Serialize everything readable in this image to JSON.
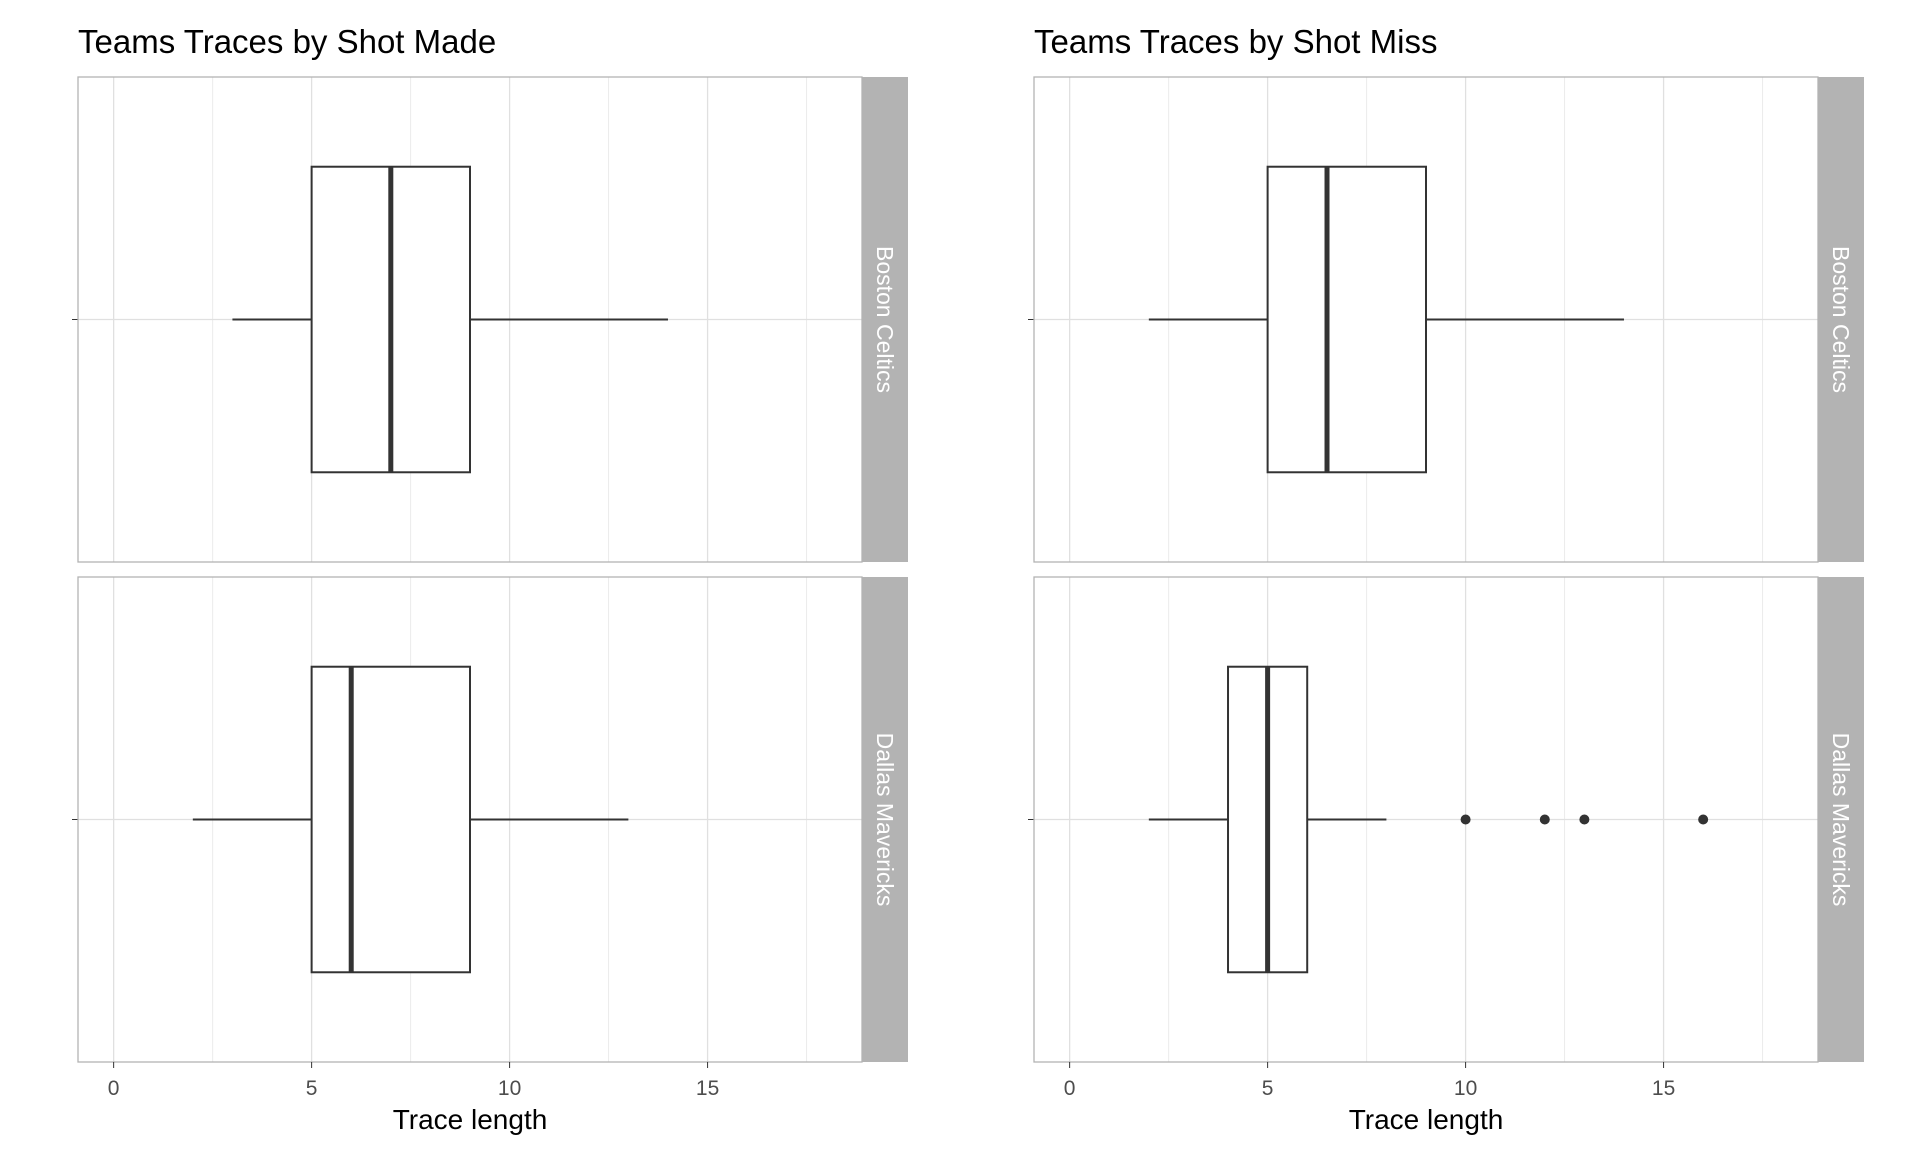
{
  "chart_data": [
    {
      "type": "boxplot",
      "title": "Teams Traces by Shot Made",
      "xlabel": "Trace length",
      "ylabel": "",
      "xlim": [
        -0.9,
        18.9
      ],
      "x_ticks": [
        0,
        5,
        10,
        15
      ],
      "x_tick_labels": [
        "0",
        "5",
        "10",
        "15"
      ],
      "grid": true,
      "facets": [
        {
          "strip_label": "Boston Celtics",
          "whisker_low": 3,
          "q1": 5,
          "median": 7,
          "q3": 9,
          "whisker_high": 14,
          "outliers": []
        },
        {
          "strip_label": "Dallas Mavericks",
          "whisker_low": 2,
          "q1": 5,
          "median": 6,
          "q3": 9,
          "whisker_high": 13,
          "outliers": []
        }
      ]
    },
    {
      "type": "boxplot",
      "title": "Teams Traces by Shot Miss",
      "xlabel": "Trace length",
      "ylabel": "",
      "xlim": [
        -0.9,
        18.9
      ],
      "x_ticks": [
        0,
        5,
        10,
        15
      ],
      "x_tick_labels": [
        "0",
        "5",
        "10",
        "15"
      ],
      "grid": true,
      "facets": [
        {
          "strip_label": "Boston Celtics",
          "whisker_low": 2,
          "q1": 5,
          "median": 6.5,
          "q3": 9,
          "whisker_high": 14,
          "outliers": []
        },
        {
          "strip_label": "Dallas Mavericks",
          "whisker_low": 2,
          "q1": 4,
          "median": 5,
          "q3": 6,
          "whisker_high": 8,
          "outliers": [
            10,
            12,
            13,
            16
          ]
        }
      ]
    }
  ]
}
